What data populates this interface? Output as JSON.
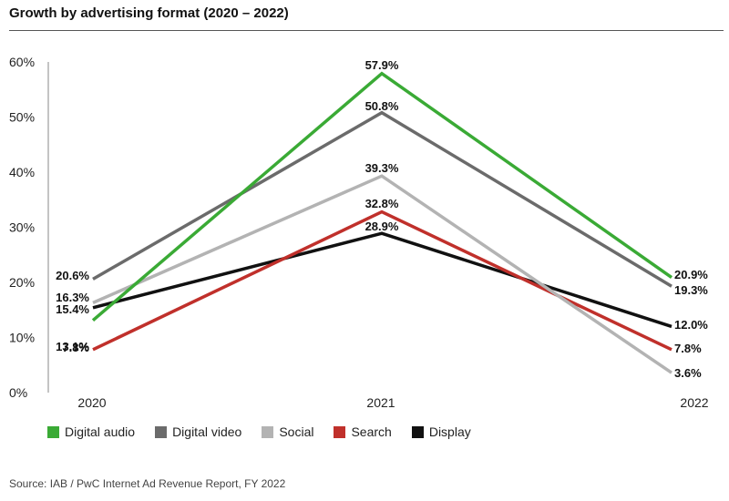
{
  "chart_data": {
    "type": "line",
    "title": "Growth by advertising format (2020 – 2022)",
    "categories": [
      "2020",
      "2021",
      "2022"
    ],
    "ylim": [
      0,
      60
    ],
    "yticks": [
      "0%",
      "10%",
      "20%",
      "30%",
      "40%",
      "50%",
      "60%"
    ],
    "series": [
      {
        "name": "Digital audio",
        "color": "#3aaa35",
        "values": [
          13.1,
          57.9,
          20.9
        ],
        "labels": [
          "13.1%",
          "57.9%",
          "20.9%"
        ]
      },
      {
        "name": "Digital video",
        "color": "#6b6b6b",
        "values": [
          20.6,
          50.8,
          19.3
        ],
        "labels": [
          "20.6%",
          "50.8%",
          "19.3%"
        ]
      },
      {
        "name": "Social",
        "color": "#b3b3b3",
        "values": [
          16.3,
          39.3,
          3.6
        ],
        "labels": [
          "16.3%",
          "39.3%",
          "3.6%"
        ]
      },
      {
        "name": "Search",
        "color": "#c0302b",
        "values": [
          7.8,
          32.8,
          7.8
        ],
        "labels": [
          "7.8%",
          "32.8%",
          "7.8%"
        ]
      },
      {
        "name": "Display",
        "color": "#111111",
        "values": [
          15.4,
          28.9,
          12.0
        ],
        "labels": [
          "15.4%",
          "28.9%",
          "12.0%"
        ]
      }
    ]
  },
  "source": "Source: IAB / PwC Internet Ad Revenue Report, FY 2022"
}
